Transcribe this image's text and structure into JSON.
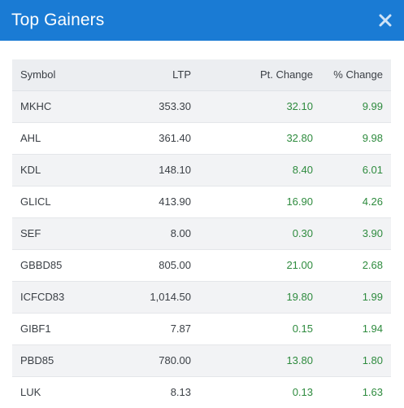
{
  "header": {
    "title": "Top Gainers",
    "close_icon": "close-icon"
  },
  "colors": {
    "header_bg": "#1a7bd4",
    "gain_text": "#2e8b3e"
  },
  "table": {
    "columns": [
      "Symbol",
      "LTP",
      "Pt. Change",
      "% Change"
    ],
    "rows": [
      {
        "symbol": "MKHC",
        "ltp": "353.30",
        "pt_change": "32.10",
        "pct_change": "9.99"
      },
      {
        "symbol": "AHL",
        "ltp": "361.40",
        "pt_change": "32.80",
        "pct_change": "9.98"
      },
      {
        "symbol": "KDL",
        "ltp": "148.10",
        "pt_change": "8.40",
        "pct_change": "6.01"
      },
      {
        "symbol": "GLICL",
        "ltp": "413.90",
        "pt_change": "16.90",
        "pct_change": "4.26"
      },
      {
        "symbol": "SEF",
        "ltp": "8.00",
        "pt_change": "0.30",
        "pct_change": "3.90"
      },
      {
        "symbol": "GBBD85",
        "ltp": "805.00",
        "pt_change": "21.00",
        "pct_change": "2.68"
      },
      {
        "symbol": "ICFCD83",
        "ltp": "1,014.50",
        "pt_change": "19.80",
        "pct_change": "1.99"
      },
      {
        "symbol": "GIBF1",
        "ltp": "7.87",
        "pt_change": "0.15",
        "pct_change": "1.94"
      },
      {
        "symbol": "PBD85",
        "ltp": "780.00",
        "pt_change": "13.80",
        "pct_change": "1.80"
      },
      {
        "symbol": "LUK",
        "ltp": "8.13",
        "pt_change": "0.13",
        "pct_change": "1.63"
      }
    ]
  }
}
